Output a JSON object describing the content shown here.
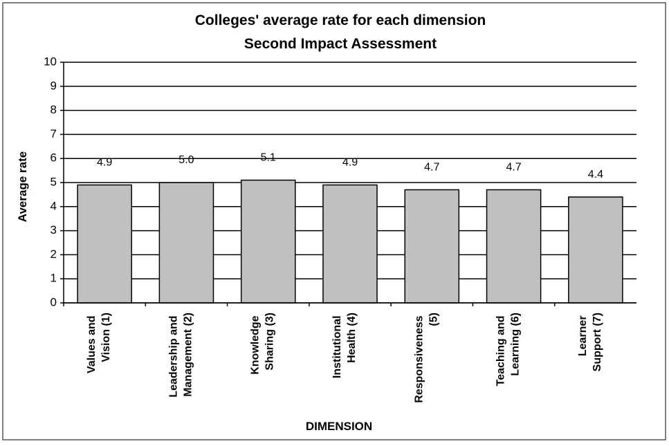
{
  "chart_data": {
    "type": "bar",
    "title": "Colleges' average rate for each dimension",
    "subtitle": "Second Impact Assessment",
    "x_label": "DIMENSION",
    "y_label": "Average rate",
    "categories": [
      "Values and Vision (1)",
      "Leadership and Management (2)",
      "Knowledge Sharing (3)",
      "Institutional Health (4)",
      "Responsiveness (5)",
      "Teaching and Learning (6)",
      "Learner Support (7)"
    ],
    "values": [
      4.9,
      5.0,
      5.1,
      4.9,
      4.7,
      4.7,
      4.4
    ],
    "value_labels": [
      "4.9",
      "5.0",
      "5.1",
      "4.9",
      "4.7",
      "4.7",
      "4.4"
    ],
    "color": "#c0c0c0",
    "ylim": [
      0,
      10
    ],
    "yticks": [
      0,
      1,
      2,
      3,
      4,
      5,
      6,
      7,
      8,
      9,
      10
    ],
    "grid": true
  }
}
